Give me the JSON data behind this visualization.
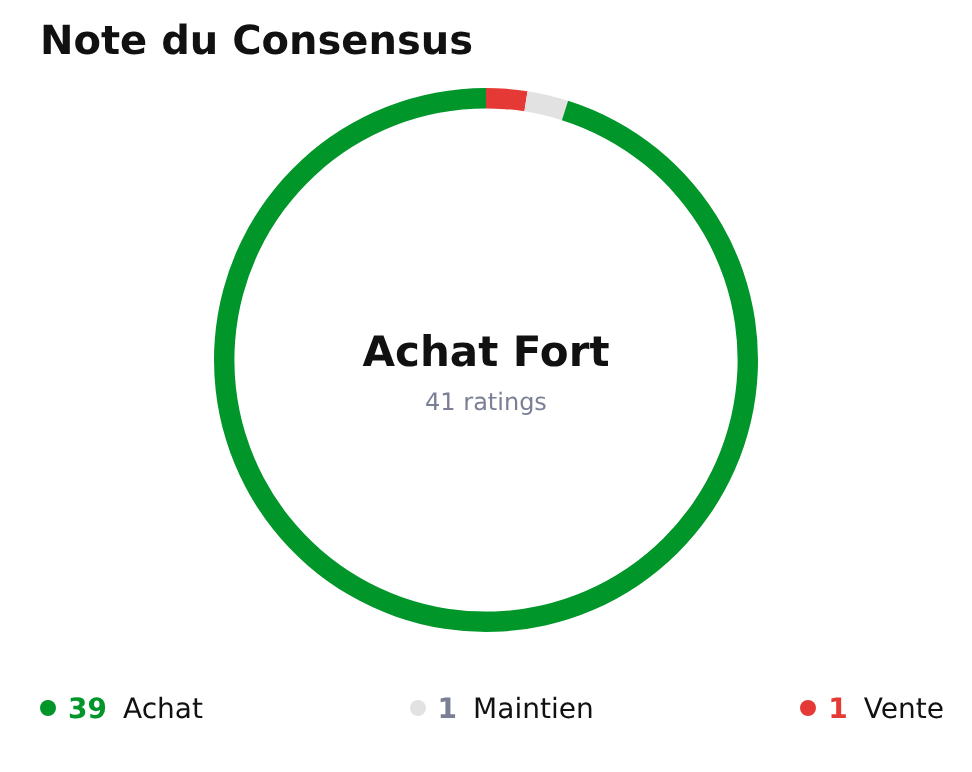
{
  "chart_data": {
    "type": "donut",
    "title": "Note du Consensus",
    "categories": [
      "Achat",
      "Maintien",
      "Vente"
    ],
    "values": [
      39,
      1,
      1
    ],
    "colors": [
      "#00962a",
      "#e2e2e2",
      "#e53935"
    ],
    "annotations": [
      "Achat Fort",
      "41 ratings"
    ],
    "legend": "bottom",
    "data_labels": true
  }
}
